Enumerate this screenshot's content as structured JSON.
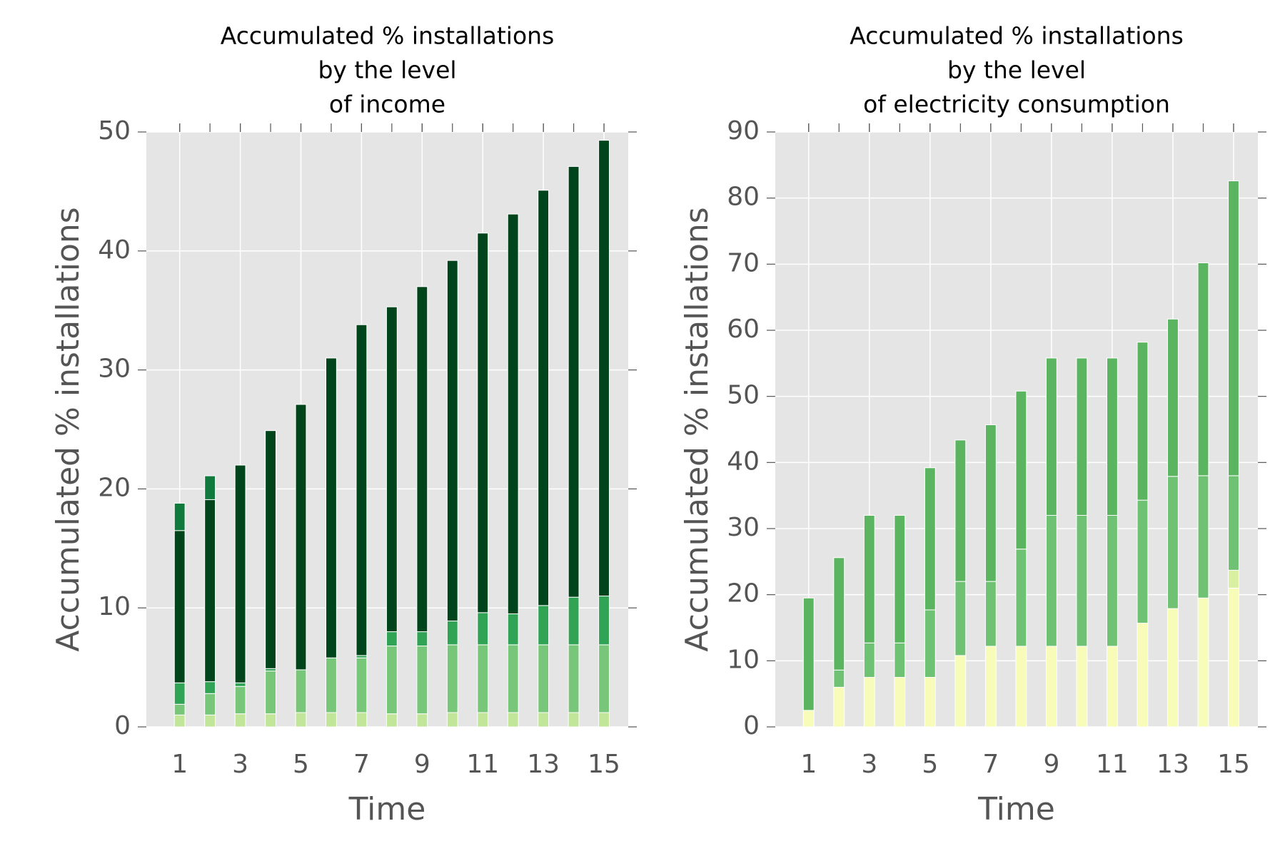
{
  "chart_data": [
    {
      "type": "bar",
      "stacked": true,
      "title": [
        "Accumulated % installations",
        "by the level",
        "of income"
      ],
      "x_label": "Time",
      "y_label": "Accumulated % installations",
      "x": [
        1,
        2,
        3,
        4,
        5,
        6,
        7,
        8,
        9,
        10,
        11,
        12,
        13,
        14,
        15
      ],
      "xlim": [
        -0.1,
        15.8
      ],
      "xticks": [
        1,
        3,
        5,
        7,
        9,
        11,
        13,
        15
      ],
      "ylim": [
        0,
        50
      ],
      "yticks": [
        0,
        10,
        20,
        30,
        40,
        50
      ],
      "grid": true,
      "series": [
        {
          "color": "#c2e699",
          "values": [
            1.0,
            1.0,
            1.1,
            1.1,
            1.2,
            1.2,
            1.2,
            1.1,
            1.1,
            1.2,
            1.2,
            1.2,
            1.2,
            1.2,
            1.2
          ]
        },
        {
          "color": "#78c679",
          "values": [
            0.9,
            1.8,
            2.3,
            3.6,
            3.6,
            4.6,
            4.6,
            5.7,
            5.7,
            5.7,
            5.7,
            5.7,
            5.7,
            5.7,
            5.7
          ]
        },
        {
          "color": "#31a354",
          "values": [
            1.8,
            1.0,
            0.3,
            0.2,
            0,
            0,
            0.2,
            1.2,
            1.2,
            2.0,
            2.7,
            2.6,
            3.3,
            4.0,
            4.1
          ]
        },
        {
          "color": "#00441b",
          "values": [
            12.8,
            15.3,
            18.3,
            20.0,
            22.3,
            25.2,
            27.8,
            27.3,
            29.0,
            30.3,
            31.9,
            33.6,
            34.9,
            36.2,
            38.3
          ]
        },
        {
          "color": "#0f7a3c",
          "values": [
            2.3,
            2.0,
            0,
            0,
            0,
            0,
            0,
            0,
            0,
            0,
            0,
            0,
            0,
            0,
            0
          ]
        }
      ]
    },
    {
      "type": "bar",
      "stacked": true,
      "title": [
        "Accumulated % installations",
        "by the level",
        "of electricity consumption"
      ],
      "x_label": "Time",
      "y_label": "Accumulated % installations",
      "x": [
        1,
        2,
        3,
        4,
        5,
        6,
        7,
        8,
        9,
        10,
        11,
        12,
        13,
        14,
        15
      ],
      "xlim": [
        -0.1,
        15.8
      ],
      "xticks": [
        1,
        3,
        5,
        7,
        9,
        11,
        13,
        15
      ],
      "ylim": [
        0,
        90
      ],
      "yticks": [
        0,
        10,
        20,
        30,
        40,
        50,
        60,
        70,
        80,
        90
      ],
      "grid": true,
      "series": [
        {
          "color": "#f7fcb9",
          "values": [
            2.5,
            6.0,
            7.5,
            7.5,
            7.5,
            10.8,
            12.2,
            12.2,
            12.2,
            12.2,
            12.2,
            15.7,
            17.9,
            19.5,
            21.0
          ]
        },
        {
          "color": "#d9f0a3",
          "values": [
            0,
            0,
            0,
            0,
            0,
            0,
            0,
            0,
            0,
            0,
            0,
            0,
            0,
            0,
            2.7
          ]
        },
        {
          "color": "#6fc173",
          "values": [
            0,
            2.6,
            5.2,
            5.2,
            10.2,
            11.2,
            9.8,
            14.7,
            19.8,
            19.8,
            19.8,
            18.6,
            20.0,
            18.5,
            14.3
          ]
        },
        {
          "color": "#5ab460",
          "values": [
            17.0,
            17.0,
            19.3,
            19.3,
            21.5,
            21.4,
            23.7,
            23.9,
            23.8,
            23.8,
            23.8,
            23.9,
            23.8,
            32.2,
            44.6
          ]
        }
      ]
    }
  ]
}
